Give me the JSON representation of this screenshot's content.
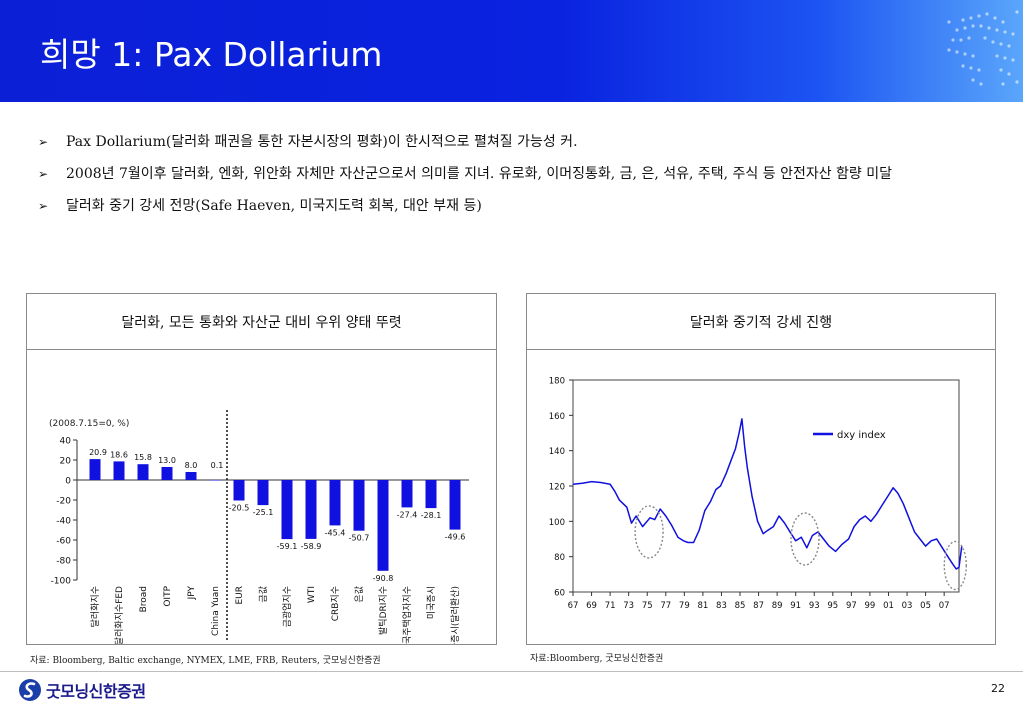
{
  "header": {
    "title": "희망 1: Pax Dollarium"
  },
  "bullets": [
    "Pax Dollarium(달러화 패권을 통한 자본시장의 평화)이 한시적으로 펼쳐질 가능성 커.",
    "2008년 7월이후 달러화, 엔화, 위안화 자체만 자산군으로서 의미를 지녀. 유로화, 이머징통화, 금, 은, 석유, 주택, 주식 등 안전자산 함량 미달",
    "달러화 중기 강세 전망(Safe Haeven, 미국지도력 회복, 대안 부재 등)"
  ],
  "left_panel": {
    "heading": "달러화, 모든 통화와 자산군 대비 우위 양태 뚜렷",
    "source": "자료: Bloomberg, Baltic exchange, NYMEX, LME, FRB, Reuters, 굿모닝신한증권"
  },
  "right_panel": {
    "heading": "달러화 중기적 강세 진행",
    "source": "자료:Bloomberg, 굿모닝신한증권"
  },
  "footer": {
    "brand": "굿모닝신한증권",
    "page": "22"
  },
  "colors": {
    "bar": "#1010e0",
    "line": "#1010e0",
    "header": "#0b1fd6"
  },
  "chart_data": [
    {
      "type": "bar",
      "note": "(2008.7.15=0, %)",
      "categories": [
        "달러화지수",
        "달러화지수FED",
        "Broad",
        "OITP",
        "JPY",
        "China Yuan",
        "EUR",
        "금값",
        "금광업지수",
        "WTI",
        "CRB지수",
        "은값",
        "발틱DRI지수",
        "미국주택업자지수",
        "미국증시",
        "한국증시(달러환산)"
      ],
      "values": [
        20.9,
        18.6,
        15.8,
        13.0,
        8.0,
        0.1,
        -20.5,
        -25.1,
        -59.1,
        -58.9,
        -45.4,
        -50.7,
        -90.8,
        -27.4,
        -28.1,
        -49.6
      ],
      "data_labels": [
        "20.9",
        "18.6",
        "15.8",
        "13.0",
        "8.0",
        "0.1",
        "-20.5",
        "-25.1",
        "-59.1",
        "-58.9",
        "-45.4",
        "-50.7",
        "-90.8",
        "-27.4",
        "-28.1",
        "-49.6"
      ],
      "yticks": [
        "40",
        "20",
        "0",
        "-20",
        "-40",
        "-60",
        "-80",
        "-100"
      ],
      "ylim": [
        -100,
        40
      ],
      "divider_after_index": 5
    },
    {
      "type": "line",
      "series": [
        {
          "name": "dxy index",
          "x": [
            1967.0,
            1968.0,
            1969.0,
            1970.0,
            1971.0,
            1971.5,
            1972.0,
            1972.8,
            1973.3,
            1973.8,
            1974.5,
            1975.3,
            1975.8,
            1976.4,
            1977.0,
            1977.6,
            1978.3,
            1978.9,
            1979.4,
            1980.0,
            1980.6,
            1981.2,
            1981.8,
            1982.4,
            1982.9,
            1983.5,
            1984.0,
            1984.5,
            1984.9,
            1985.2,
            1985.5,
            1985.8,
            1986.3,
            1986.9,
            1987.5,
            1988.0,
            1988.6,
            1989.2,
            1989.8,
            1990.5,
            1991.0,
            1991.6,
            1992.2,
            1992.8,
            1993.4,
            1994.0,
            1994.6,
            1995.3,
            1996.0,
            1996.7,
            1997.3,
            1997.9,
            1998.5,
            1999.1,
            1999.7,
            2000.3,
            2000.9,
            2001.5,
            2002.0,
            2002.6,
            2003.2,
            2003.8,
            2004.4,
            2005.0,
            2005.6,
            2006.2,
            2006.8,
            2007.4,
            2007.9,
            2008.3,
            2008.6,
            2008.9
          ],
          "values": [
            121,
            121.5,
            122.5,
            122,
            121,
            117,
            112,
            108,
            99,
            103,
            97,
            102,
            101,
            107,
            103,
            98,
            91,
            89,
            88,
            88,
            95,
            106,
            111,
            118,
            120,
            127,
            134,
            141,
            150,
            158,
            142,
            130,
            114,
            100,
            93,
            95,
            97,
            103,
            99,
            93,
            89,
            91,
            85,
            92,
            94,
            90,
            86,
            83,
            87,
            90,
            97,
            101,
            103,
            100,
            104,
            109,
            114,
            119,
            116,
            110,
            102,
            94,
            90,
            86,
            89,
            90,
            85,
            80,
            76,
            73,
            74,
            86
          ]
        }
      ],
      "xticks": [
        "67",
        "69",
        "71",
        "73",
        "75",
        "77",
        "79",
        "81",
        "83",
        "85",
        "87",
        "89",
        "91",
        "93",
        "95",
        "97",
        "99",
        "01",
        "03",
        "05",
        "07"
      ],
      "yticks": [
        "180",
        "160",
        "140",
        "120",
        "100",
        "80",
        "60"
      ],
      "ylim": [
        60,
        180
      ],
      "xlim": [
        1967,
        2008.6
      ],
      "legend": "right",
      "highlights": "dotted circles around troughs"
    }
  ]
}
